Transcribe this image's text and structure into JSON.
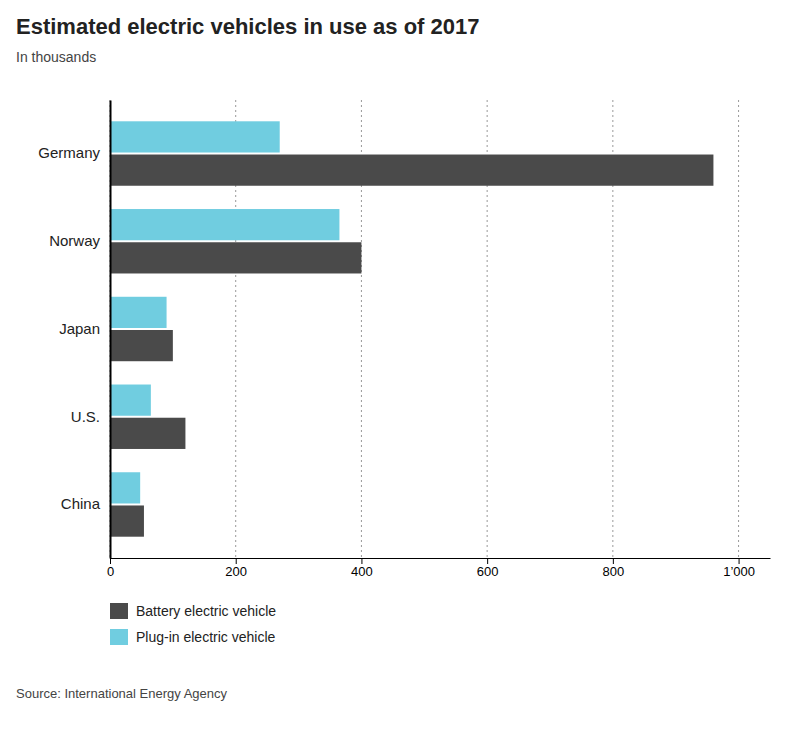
{
  "chart_data": {
    "type": "bar",
    "orientation": "horizontal",
    "title": "Estimated electric vehicles in use as of 2017",
    "subtitle": "In thousands",
    "source": "Source: International Energy Agency",
    "categories": [
      "Germany",
      "Norway",
      "Japan",
      "U.S.",
      "China"
    ],
    "series": [
      {
        "name": "Battery electric vehicle",
        "color": "#4a4a4a",
        "values": [
          960,
          400,
          100,
          120,
          54
        ]
      },
      {
        "name": "Plug-in electric vehicle",
        "color": "#70cde0",
        "values": [
          270,
          365,
          90,
          65,
          48
        ]
      }
    ],
    "xlim": [
      0,
      1050
    ],
    "xticks": [
      0,
      200,
      400,
      600,
      800,
      {
        "value": 1000,
        "label": "1’000"
      }
    ],
    "grid": true,
    "legend": "bottom"
  }
}
